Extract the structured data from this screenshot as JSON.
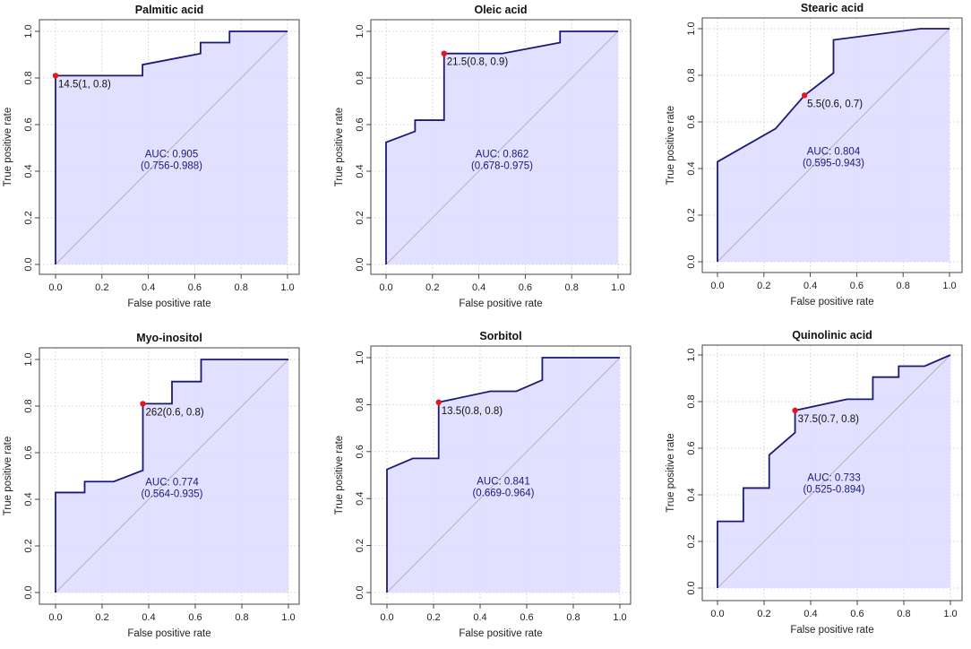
{
  "figure": {
    "xlabel": "False positive rate",
    "ylabel": "True positive rate",
    "colors": {
      "line": "#1a1a7a",
      "fill": "#dcdcff",
      "diagonal": "#b4b4b4",
      "grid": "#d3d3d3",
      "point": "#e8141e",
      "text": "#1a1a7a"
    }
  },
  "chart_data": [
    {
      "type": "line",
      "title": "Palmitic acid",
      "xlabel": "False positive rate",
      "ylabel": "True positive rate",
      "xlim": [
        0,
        1
      ],
      "ylim": [
        0,
        1
      ],
      "xticks": [
        "0.0",
        "0.2",
        "0.4",
        "0.6",
        "0.8",
        "1.0"
      ],
      "yticks": [
        "0.0",
        "0.2",
        "0.4",
        "0.6",
        "0.8",
        "1.0"
      ],
      "series": [
        {
          "name": "ROC",
          "x": [
            0,
            0,
            0.375,
            0.375,
            0.625,
            0.625,
            0.75,
            0.75,
            1.0
          ],
          "y": [
            0,
            0.81,
            0.81,
            0.857,
            0.905,
            0.952,
            0.952,
            1.0,
            1.0
          ]
        }
      ],
      "cutoff_point": {
        "x": 0,
        "y": 0.81,
        "label": "14.5(1, 0.8)"
      },
      "auc_label": "AUC: 0.905",
      "ci_label": "(0.756-0.988)",
      "grid": true
    },
    {
      "type": "line",
      "title": "Oleic acid",
      "xlabel": "False positive rate",
      "ylabel": "True positive rate",
      "xlim": [
        0,
        1
      ],
      "ylim": [
        0,
        1
      ],
      "xticks": [
        "0.0",
        "0.2",
        "0.4",
        "0.6",
        "0.8",
        "1.0"
      ],
      "yticks": [
        "0.0",
        "0.2",
        "0.4",
        "0.6",
        "0.8",
        "1.0"
      ],
      "series": [
        {
          "name": "ROC",
          "x": [
            0,
            0,
            0.125,
            0.125,
            0.25,
            0.25,
            0.5,
            0.75,
            0.75,
            1.0
          ],
          "y": [
            0,
            0.524,
            0.571,
            0.619,
            0.619,
            0.905,
            0.905,
            0.952,
            1.0,
            1.0
          ]
        }
      ],
      "cutoff_point": {
        "x": 0.25,
        "y": 0.905,
        "label": "21.5(0.8, 0.9)"
      },
      "auc_label": "AUC: 0.862",
      "ci_label": "(0.678-0.975)",
      "grid": true
    },
    {
      "type": "line",
      "title": "Stearic acid",
      "xlabel": "False positive rate",
      "ylabel": "True positive rate",
      "xlim": [
        0,
        1
      ],
      "ylim": [
        0,
        1
      ],
      "xticks": [
        "0.0",
        "0.2",
        "0.4",
        "0.6",
        "0.8",
        "1.0"
      ],
      "yticks": [
        "0.0",
        "0.2",
        "0.4",
        "0.6",
        "0.8",
        "1.0"
      ],
      "series": [
        {
          "name": "ROC",
          "x": [
            0,
            0,
            0.25,
            0.375,
            0.5,
            0.5,
            0.875,
            1.0
          ],
          "y": [
            0,
            0.429,
            0.571,
            0.714,
            0.81,
            0.952,
            1.0,
            1.0
          ]
        }
      ],
      "cutoff_point": {
        "x": 0.375,
        "y": 0.714,
        "label": "5.5(0.6, 0.7)"
      },
      "auc_label": "AUC: 0.804",
      "ci_label": "(0.595-0.943)",
      "grid": true
    },
    {
      "type": "line",
      "title": "Myo-inositol",
      "xlabel": "False positive rate",
      "ylabel": "True positive rate",
      "xlim": [
        0,
        1
      ],
      "ylim": [
        0,
        1
      ],
      "xticks": [
        "0.0",
        "0.2",
        "0.4",
        "0.6",
        "0.8",
        "1.0"
      ],
      "yticks": [
        "0.0",
        "0.2",
        "0.4",
        "0.6",
        "0.8",
        "1.0"
      ],
      "series": [
        {
          "name": "ROC",
          "x": [
            0,
            0,
            0.125,
            0.125,
            0.25,
            0.375,
            0.375,
            0.5,
            0.5,
            0.625,
            0.625,
            1.0
          ],
          "y": [
            0,
            0.429,
            0.429,
            0.476,
            0.476,
            0.524,
            0.81,
            0.81,
            0.905,
            0.905,
            1.0,
            1.0
          ]
        }
      ],
      "cutoff_point": {
        "x": 0.375,
        "y": 0.81,
        "label": "262(0.6, 0.8)"
      },
      "auc_label": "AUC: 0.774",
      "ci_label": "(0.564-0.935)",
      "grid": true
    },
    {
      "type": "line",
      "title": "Sorbitol",
      "xlabel": "False positive rate",
      "ylabel": "True positive rate",
      "xlim": [
        0,
        1
      ],
      "ylim": [
        0,
        1
      ],
      "xticks": [
        "0.0",
        "0.2",
        "0.4",
        "0.6",
        "0.8",
        "1.0"
      ],
      "yticks": [
        "0.0",
        "0.2",
        "0.4",
        "0.6",
        "0.8",
        "1.0"
      ],
      "series": [
        {
          "name": "ROC",
          "x": [
            0,
            0,
            0.111,
            0.222,
            0.222,
            0.444,
            0.556,
            0.667,
            0.667,
            1.0
          ],
          "y": [
            0,
            0.524,
            0.571,
            0.571,
            0.81,
            0.857,
            0.857,
            0.905,
            1.0,
            1.0
          ]
        }
      ],
      "cutoff_point": {
        "x": 0.222,
        "y": 0.81,
        "label": "13.5(0.8, 0.8)"
      },
      "auc_label": "AUC: 0.841",
      "ci_label": "(0.669-0.964)",
      "grid": true
    },
    {
      "type": "line",
      "title": "Quinolinic acid",
      "xlabel": "False positive rate",
      "ylabel": "True positive rate",
      "xlim": [
        0,
        1
      ],
      "ylim": [
        0,
        1
      ],
      "xticks": [
        "0.0",
        "0.2",
        "0.4",
        "0.6",
        "0.8",
        "1.0"
      ],
      "yticks": [
        "0.0",
        "0.2",
        "0.4",
        "0.6",
        "0.8",
        "1.0"
      ],
      "series": [
        {
          "name": "ROC",
          "x": [
            0,
            0,
            0.111,
            0.111,
            0.222,
            0.222,
            0.333,
            0.333,
            0.556,
            0.667,
            0.667,
            0.778,
            0.778,
            0.889,
            1.0
          ],
          "y": [
            0,
            0.286,
            0.286,
            0.429,
            0.429,
            0.571,
            0.667,
            0.762,
            0.81,
            0.81,
            0.905,
            0.905,
            0.952,
            0.952,
            1.0
          ]
        }
      ],
      "cutoff_point": {
        "x": 0.333,
        "y": 0.762,
        "label": "37.5(0.7, 0.8)"
      },
      "auc_label": "AUC: 0.733",
      "ci_label": "(0.525-0.894)",
      "grid": true
    }
  ]
}
